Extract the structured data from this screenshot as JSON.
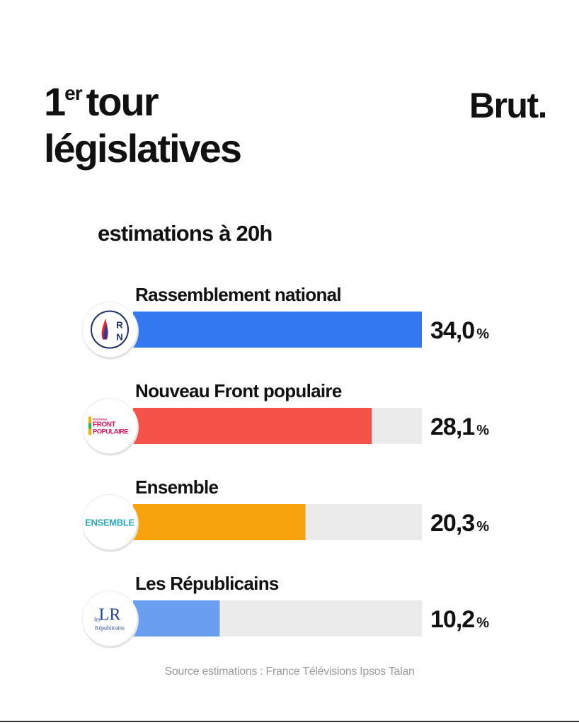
{
  "header": {
    "title_number": "1",
    "title_sup": "er",
    "title_word": "tour",
    "title_line2": "législatives",
    "brand": "Brut."
  },
  "subtitle": "estimations à 20h",
  "chart_data": {
    "type": "bar",
    "orientation": "horizontal",
    "title": "1er tour législatives",
    "subtitle": "estimations à 20h",
    "value_suffix": "%",
    "xlim": [
      0,
      34
    ],
    "grid": false,
    "legend": "none",
    "categories": [
      "Rassemblement national",
      "Nouveau Front populaire",
      "Ensemble",
      "Les Républicains"
    ],
    "values": [
      34.0,
      28.1,
      20.3,
      10.2
    ],
    "value_labels": [
      "34,0",
      "28,1",
      "20,3",
      "10,2"
    ],
    "colors": [
      "#3478f0",
      "#f5524a",
      "#f7a30d",
      "#6a9ff0"
    ],
    "track_color": "#ebebeb",
    "logos": [
      {
        "icon": "rn-logo-icon",
        "text": [
          "R",
          "N"
        ]
      },
      {
        "icon": "front-populaire-logo-icon",
        "text": [
          "NOUVEAU",
          "FRONT",
          "POPULAIRE"
        ]
      },
      {
        "icon": "ensemble-logo-icon",
        "text": [
          "ENSEMBLE"
        ]
      },
      {
        "icon": "les-republicains-logo-icon",
        "text": [
          "LR",
          "les",
          "Républicains"
        ]
      }
    ]
  },
  "source": "Source estimations : France Télévisions Ipsos Talan"
}
